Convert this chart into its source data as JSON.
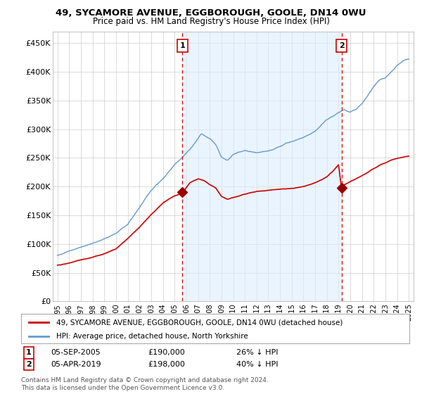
{
  "title": "49, SYCAMORE AVENUE, EGGBOROUGH, GOOLE, DN14 0WU",
  "subtitle": "Price paid vs. HM Land Registry's House Price Index (HPI)",
  "ylabel_ticks": [
    "£0",
    "£50K",
    "£100K",
    "£150K",
    "£200K",
    "£250K",
    "£300K",
    "£350K",
    "£400K",
    "£450K"
  ],
  "ytick_values": [
    0,
    50000,
    100000,
    150000,
    200000,
    250000,
    300000,
    350000,
    400000,
    450000
  ],
  "ylim": [
    0,
    470000
  ],
  "sale1_date": 2005.67,
  "sale1_price": 190000,
  "sale2_date": 2019.25,
  "sale2_price": 198000,
  "legend_property": "49, SYCAMORE AVENUE, EGGBOROUGH, GOOLE, DN14 0WU (detached house)",
  "legend_hpi": "HPI: Average price, detached house, North Yorkshire",
  "footnote": "Contains HM Land Registry data © Crown copyright and database right 2024.\nThis data is licensed under the Open Government Licence v3.0.",
  "line_property_color": "#cc0000",
  "line_hpi_color": "#6699cc",
  "sale_marker_color": "#990000",
  "dashed_line_color": "#cc0000",
  "shade_color": "#ddeeff",
  "background_color": "#ffffff",
  "grid_color": "#cccccc"
}
